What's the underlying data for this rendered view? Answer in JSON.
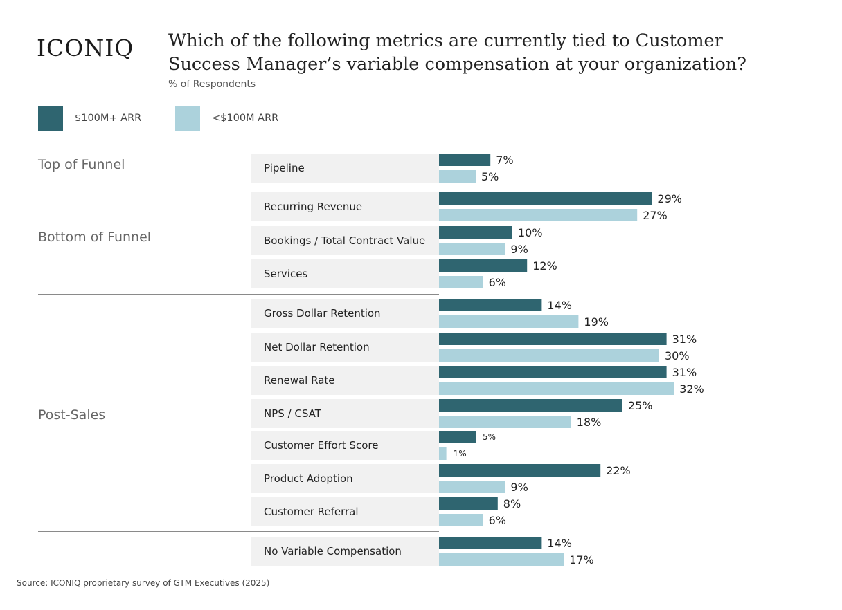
{
  "brand": {
    "logo_text": "ICONIQ"
  },
  "colors": {
    "series_large": "#2f6570",
    "series_small": "#acd2dc"
  },
  "chart_data": {
    "type": "bar",
    "orientation": "horizontal",
    "title": "Which of the following metrics are currently tied to Customer Success Manager’s variable compensation at your organization?",
    "subtitle": "% of Respondents",
    "legend": [
      "$100M+ ARR",
      "<$100M ARR"
    ],
    "legend_placement": "top-left",
    "value_suffix": "%",
    "groups": [
      {
        "label": "Top of Funnel",
        "categories": [
          "Pipeline"
        ]
      },
      {
        "label": "Bottom of Funnel",
        "categories": [
          "Recurring Revenue",
          "Bookings / Total Contract Value",
          "Services"
        ]
      },
      {
        "label": "Post-Sales",
        "categories": [
          "Gross Dollar Retention",
          "Net Dollar Retention",
          "Renewal Rate",
          "NPS /  CSAT",
          "Customer Effort Score",
          "Product Adoption",
          "Customer Referral"
        ]
      },
      {
        "label": "",
        "categories": [
          "No Variable Compensation"
        ]
      }
    ],
    "categories": [
      "Pipeline",
      "Recurring Revenue",
      "Bookings / Total Contract Value",
      "Services",
      "Gross Dollar Retention",
      "Net Dollar Retention",
      "Renewal Rate",
      "NPS /  CSAT",
      "Customer Effort Score",
      "Product Adoption",
      "Customer Referral",
      "No Variable Compensation"
    ],
    "series": [
      {
        "name": "$100M+ ARR",
        "values": [
          7,
          29,
          10,
          12,
          14,
          31,
          31,
          25,
          5,
          22,
          8,
          14
        ]
      },
      {
        "name": "<$100M ARR",
        "values": [
          5,
          27,
          9,
          6,
          19,
          30,
          32,
          18,
          1,
          9,
          6,
          17
        ]
      }
    ],
    "xlim": [
      0,
      50
    ],
    "grid": false
  },
  "source": "Source: ICONIQ proprietary survey of GTM Executives (2025)"
}
